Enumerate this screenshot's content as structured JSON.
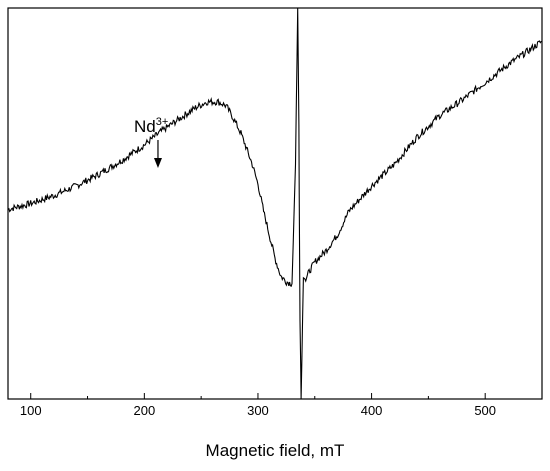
{
  "chart_data": {
    "type": "line",
    "title": "",
    "xlabel": "Magnetic field, mT",
    "ylabel": "",
    "xlim": [
      80,
      550
    ],
    "ylim": [
      -1.0,
      1.0
    ],
    "xticks": [
      100,
      200,
      300,
      400,
      500
    ],
    "xtick_labels": [
      "100",
      "200",
      "300",
      "400",
      "500"
    ],
    "grid": false,
    "y_axis_labels_shown": false,
    "series": [
      {
        "color": "#000000",
        "x": [
          80,
          100,
          120,
          140,
          160,
          180,
          200,
          215,
          230,
          245,
          255,
          265,
          272,
          278,
          285,
          290,
          295,
          300,
          305,
          310,
          315,
          320,
          325,
          330,
          333,
          335,
          336,
          337,
          338,
          340,
          342,
          345,
          350,
          360,
          370,
          380,
          400,
          420,
          440,
          460,
          480,
          500,
          520,
          540,
          550
        ],
        "y": [
          -0.03,
          0.0,
          0.04,
          0.09,
          0.15,
          0.22,
          0.3,
          0.37,
          0.43,
          0.49,
          0.52,
          0.52,
          0.5,
          0.44,
          0.36,
          0.28,
          0.2,
          0.1,
          -0.04,
          -0.16,
          -0.28,
          -0.37,
          -0.4,
          -0.41,
          0.2,
          1.0,
          0.4,
          -0.6,
          -1.0,
          -0.38,
          -0.39,
          -0.35,
          -0.3,
          -0.24,
          -0.16,
          -0.04,
          0.09,
          0.2,
          0.34,
          0.45,
          0.53,
          0.62,
          0.71,
          0.79,
          0.83
        ]
      }
    ],
    "annotations": [
      {
        "text": "Nd",
        "superscript": "3+",
        "x": 212,
        "arrow": "down"
      }
    ]
  }
}
